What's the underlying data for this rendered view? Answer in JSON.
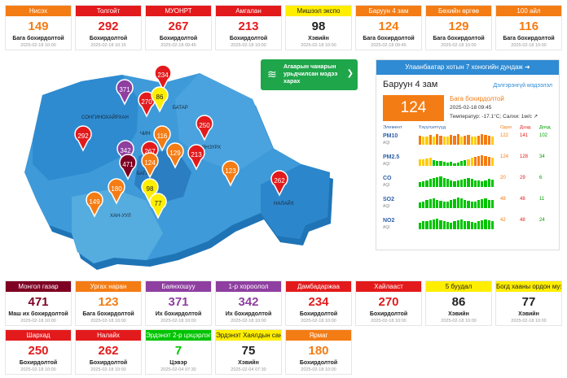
{
  "colors": {
    "good": "#00c400",
    "moderate": "#ffee00",
    "sensitive": "#f47c14",
    "unhealthy": "#e31a1c",
    "very_unhealthy": "#8e3fa0",
    "hazardous": "#7e0023",
    "blue": "#2e8bd4"
  },
  "cards": [
    {
      "name": "Нисэх",
      "value": "149",
      "level": "Бага бохирдолтой",
      "time": "2025-02-18 10:00",
      "color": "sensitive"
    },
    {
      "name": "Толгойт",
      "value": "292",
      "level": "Бохирдолтой",
      "time": "2025-02-18 10:15",
      "color": "unhealthy"
    },
    {
      "name": "МУОНРТ",
      "value": "267",
      "level": "Бохирдолтой",
      "time": "2025-02-18 09:45",
      "color": "unhealthy"
    },
    {
      "name": "Амгалан",
      "value": "213",
      "level": "Бохирдолтой",
      "time": "2025-02-18 10:00",
      "color": "unhealthy"
    },
    {
      "name": "Мишээл экспо",
      "value": "98",
      "level": "Хэвийн",
      "time": "2025-02-18 10:00",
      "color": "moderate"
    },
    {
      "name": "Баруун 4 зам",
      "value": "124",
      "level": "Бага бохирдолтой",
      "time": "2025-02-18 09:45",
      "color": "sensitive"
    },
    {
      "name": "Бөхийн өргөө",
      "value": "129",
      "level": "Бага бохирдолтой",
      "time": "2025-02-18 10:00",
      "color": "sensitive"
    },
    {
      "name": "100 айл",
      "value": "116",
      "level": "Бага бохирдолтой",
      "time": "2025-02-18 10:00",
      "color": "sensitive"
    },
    {
      "name": "Монгол газар",
      "value": "471",
      "level": "Маш их бохирдолтой",
      "time": "2025-02-18 10:00",
      "color": "hazardous"
    },
    {
      "name": "Ургах наран",
      "value": "123",
      "level": "Бага бохирдолтой",
      "time": "2025-02-18 10:00",
      "color": "sensitive"
    },
    {
      "name": "Баянхошуу",
      "value": "371",
      "level": "Их бохирдолтой",
      "time": "2025-02-18 10:00",
      "color": "very_unhealthy"
    },
    {
      "name": "1-р хороолол",
      "value": "342",
      "level": "Их бохирдолтой",
      "time": "2025-02-18 10:00",
      "color": "very_unhealthy"
    },
    {
      "name": "Дамбадаржаа",
      "value": "234",
      "level": "Бохирдолтой",
      "time": "2025-02-18 10:00",
      "color": "unhealthy"
    },
    {
      "name": "Хайлааст",
      "value": "270",
      "level": "Бохирдолтой",
      "time": "2025-02-18 10:00",
      "color": "unhealthy"
    },
    {
      "name": "5 буудал",
      "value": "86",
      "level": "Хэвийн",
      "time": "2025-02-18 10:00",
      "color": "moderate"
    },
    {
      "name": "Богд хааны ордон музей",
      "value": "77",
      "level": "Хэвийн",
      "time": "2025-02-18 10:00",
      "color": "moderate"
    },
    {
      "name": "Шархад",
      "value": "250",
      "level": "Бохирдолтой",
      "time": "2025-02-18 10:00",
      "color": "unhealthy"
    },
    {
      "name": "Налайх",
      "value": "262",
      "level": "Бохирдолтой",
      "time": "2025-02-18 10:00",
      "color": "unhealthy"
    },
    {
      "name": "Эрдэнэт 2-р цэцэрлэг",
      "value": "7",
      "level": "Цэвэр",
      "time": "2025-02-04 07:30",
      "color": "good"
    },
    {
      "name": "Эрдэнэт Хаялдын сан",
      "value": "75",
      "level": "Хэвийн",
      "time": "2025-02-04 07:30",
      "color": "moderate"
    },
    {
      "name": "Ярмаг",
      "value": "180",
      "level": "Бохирдолтой",
      "time": "2025-02-18 10:00",
      "color": "sensitive"
    }
  ],
  "map": {
    "districts": [
      "СОНГИНОХАЙРХАН",
      "ЧИН",
      "БАТАР",
      "БАЯНЗҮРХ",
      "НАЛАЙХ",
      "ХАН-УУЛ",
      "БАГА"
    ],
    "pins": [
      {
        "value": "234",
        "color": "unhealthy"
      },
      {
        "value": "371",
        "color": "very_unhealthy"
      },
      {
        "value": "270",
        "color": "unhealthy"
      },
      {
        "value": "86",
        "color": "moderate"
      },
      {
        "value": "292",
        "color": "unhealthy"
      },
      {
        "value": "116",
        "color": "sensitive"
      },
      {
        "value": "250",
        "color": "unhealthy"
      },
      {
        "value": "342",
        "color": "very_unhealthy"
      },
      {
        "value": "267",
        "color": "unhealthy"
      },
      {
        "value": "471",
        "color": "hazardous"
      },
      {
        "value": "124",
        "color": "sensitive"
      },
      {
        "value": "129",
        "color": "sensitive"
      },
      {
        "value": "213",
        "color": "unhealthy"
      },
      {
        "value": "123",
        "color": "sensitive"
      },
      {
        "value": "262",
        "color": "unhealthy"
      },
      {
        "value": "180",
        "color": "sensitive"
      },
      {
        "value": "98",
        "color": "moderate"
      },
      {
        "value": "149",
        "color": "sensitive"
      },
      {
        "value": "77",
        "color": "moderate"
      }
    ]
  },
  "notice": {
    "text": "Агаарын чанарын урьдчилсан мэдээ харах",
    "icon": "wind-icon"
  },
  "panel": {
    "header": "Улаанбаатар хотын 7 хоногийн дундаж",
    "station": "Баруун 4 зам",
    "link": "Дэлгэрэнгүй мэдээлэл",
    "value": "124",
    "level": "Бага бохирдолтой",
    "time": "2025-02-18 09:45",
    "weather": "Температур: -17.1°C; Салхи: 1м/с",
    "cols": {
      "element": "Элемент",
      "history": "Үзүүлэлтүүд",
      "now": "Одоо",
      "max": "Дээд",
      "min": "Доод"
    },
    "unit": "AQI",
    "pollutants": [
      {
        "name": "PM10",
        "now": "122",
        "max": "141",
        "min": "102",
        "bars": [
          80,
          70,
          75,
          85,
          70,
          90,
          80,
          75,
          70,
          85,
          80,
          90,
          75,
          80,
          85,
          70,
          75,
          80,
          90,
          85,
          80,
          75
        ]
      },
      {
        "name": "PM2.5",
        "now": "124",
        "max": "128",
        "min": "34",
        "bars": [
          60,
          55,
          65,
          70,
          50,
          45,
          40,
          35,
          30,
          35,
          25,
          30,
          40,
          50,
          60,
          70,
          80,
          85,
          90,
          85,
          80,
          75
        ]
      },
      {
        "name": "CO",
        "now": "20",
        "max": "29",
        "min": "6",
        "bars": [
          40,
          50,
          60,
          70,
          80,
          85,
          90,
          80,
          70,
          60,
          50,
          55,
          65,
          75,
          80,
          70,
          60,
          55,
          50,
          60,
          70,
          65
        ]
      },
      {
        "name": "SO2",
        "now": "48",
        "max": "48",
        "min": "11",
        "bars": [
          50,
          60,
          70,
          80,
          85,
          75,
          65,
          55,
          60,
          70,
          80,
          90,
          85,
          75,
          65,
          55,
          60,
          70,
          80,
          85,
          75,
          70
        ]
      },
      {
        "name": "NO2",
        "now": "42",
        "max": "48",
        "min": "24",
        "bars": [
          60,
          70,
          75,
          80,
          85,
          90,
          80,
          70,
          65,
          60,
          70,
          80,
          85,
          75,
          70,
          65,
          60,
          70,
          80,
          85,
          80,
          75
        ]
      }
    ]
  }
}
